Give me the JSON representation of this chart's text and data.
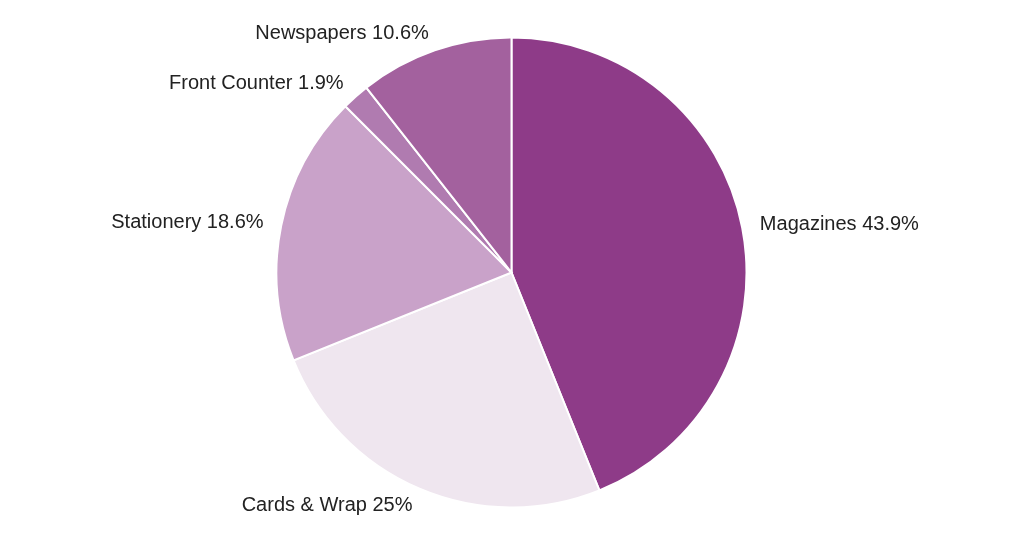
{
  "chart_data": {
    "type": "pie",
    "categories": [
      "Magazines",
      "Cards & Wrap",
      "Stationery",
      "Front Counter",
      "Newspapers"
    ],
    "values": [
      43.9,
      25,
      18.6,
      1.9,
      10.6
    ],
    "value_labels": [
      "43.9%",
      "25%",
      "18.6%",
      "1.9%",
      "10.6%"
    ],
    "colors": [
      "#8e3b88",
      "#efe6ef",
      "#c9a2c9",
      "#b07bb0",
      "#a3619e"
    ],
    "legend": false
  }
}
